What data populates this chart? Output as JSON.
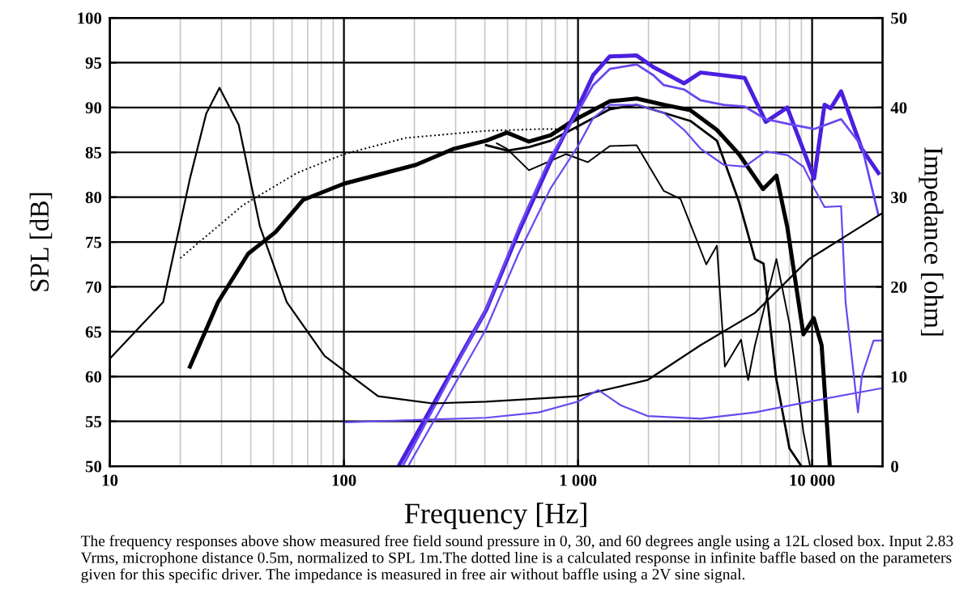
{
  "chart_data": {
    "type": "line",
    "xlabel": "Frequency [Hz]",
    "ylabel": "SPL [dB]",
    "y2label": "Impedance [ohm]",
    "log": "x",
    "xlim": [
      10,
      20000
    ],
    "xticks": [
      10,
      100,
      {
        "value": 1000,
        "label": "1 000"
      },
      {
        "value": 10000,
        "label": "10 000"
      }
    ],
    "ylim": [
      50,
      100
    ],
    "yticks": [
      50,
      55,
      60,
      65,
      70,
      75,
      80,
      85,
      90,
      95,
      100
    ],
    "y2lim": [
      0,
      50
    ],
    "y2ticks": [
      0,
      10,
      20,
      30,
      40,
      50
    ],
    "grid": true,
    "legend": false,
    "series": [
      {
        "color": "#000000",
        "line_style": "dotted",
        "x": [
          20,
          37,
          63,
          100,
          183,
          405,
          700,
          1000
        ],
        "values": [
          73.2,
          79.1,
          82.7,
          84.8,
          86.6,
          87.4,
          87.6,
          87.6
        ]
      },
      {
        "color": "#000000",
        "x": [
          22,
          29,
          39,
          51,
          67,
          100,
          203,
          295,
          405,
          497,
          617,
          764,
          935,
          1367,
          1780,
          2325,
          3020,
          3920,
          4870,
          6170,
          7040,
          7830,
          9180,
          10160,
          10980,
          11900
        ],
        "values": [
          61.1,
          68.3,
          73.7,
          76.1,
          79.7,
          81.5,
          83.6,
          85.4,
          86.3,
          87.2,
          86.2,
          86.9,
          88.4,
          90.7,
          91.0,
          90.3,
          89.7,
          87.5,
          84.8,
          80.9,
          82.4,
          76.7,
          64.7,
          66.5,
          63.5,
          50
        ]
      },
      {
        "color": "#000000",
        "x": [
          405,
          500,
          620,
          764,
          935,
          1367,
          1780,
          2325,
          3020,
          3920,
          4870,
          5700,
          6200,
          7000,
          8000,
          9000
        ],
        "values": [
          85.8,
          85.2,
          85.6,
          86.3,
          87.5,
          89.8,
          90.3,
          89.4,
          88.5,
          86.3,
          79.5,
          73.1,
          72.6,
          60,
          52,
          50
        ]
      },
      {
        "color": "#000000",
        "x": [
          450,
          497,
          617,
          890,
          1100,
          1367,
          1780,
          2325,
          2740,
          3530,
          3920,
          4240,
          4970,
          5330,
          5700,
          7040,
          8000,
          9180,
          9800
        ],
        "values": [
          86.0,
          85.4,
          83.0,
          84.8,
          83.9,
          85.7,
          85.8,
          80.7,
          79.8,
          72.5,
          74.6,
          61.1,
          64.1,
          59.6,
          63.5,
          73.1,
          65.9,
          53.8,
          50
        ]
      },
      {
        "color": "#4b1fe0",
        "x": [
          173,
          405,
          557,
          764,
          1000,
          1160,
          1367,
          1780,
          2100,
          2325,
          2840,
          3340,
          5150,
          6340,
          7830,
          10200,
          11300,
          12000,
          13300,
          16300,
          19200
        ],
        "values": [
          50.2,
          67.4,
          76.1,
          84.0,
          90.0,
          93.6,
          95.7,
          95.8,
          94.5,
          93.9,
          92.7,
          93.9,
          93.3,
          88.4,
          90.0,
          82.1,
          90.3,
          89.9,
          91.8,
          85.4,
          82.7
        ]
      },
      {
        "color": "#6a48f0",
        "x": [
          180,
          405,
          557,
          764,
          1000,
          1160,
          1367,
          1780,
          2100,
          2325,
          2840,
          3340,
          4200,
          5150,
          6340,
          7830,
          10200,
          13300,
          16300,
          19200
        ],
        "values": [
          50.2,
          67.5,
          76.5,
          84.5,
          89.5,
          92.5,
          94.3,
          94.8,
          93.6,
          92.5,
          92.0,
          90.8,
          90.3,
          90.1,
          88.7,
          88.2,
          87.6,
          88.7,
          85.7,
          78.0
        ]
      },
      {
        "color": "#6a48f0",
        "x": [
          190,
          405,
          557,
          764,
          1000,
          1160,
          1367,
          1780,
          2325,
          2840,
          3340,
          4200,
          5150,
          6340,
          7830,
          9180,
          10200,
          11300,
          13300,
          13900,
          15700,
          16300,
          18300,
          20000
        ],
        "values": [
          50.2,
          65.3,
          73.7,
          81.0,
          85.7,
          88.8,
          90.3,
          90.3,
          89.4,
          87.5,
          85.4,
          83.6,
          83.4,
          85.1,
          84.7,
          83.4,
          81.0,
          78.9,
          79.0,
          68.3,
          56.0,
          60.0,
          64.0,
          64.0
        ]
      },
      {
        "color": "#000000",
        "axis": "y2",
        "x": [
          10,
          16.9,
          22,
          25.8,
          29.4,
          35.5,
          43.8,
          57,
          82.7,
          140,
          239,
          405,
          1000,
          1980,
          3340,
          5700,
          9700,
          14800,
          19900
        ],
        "values": [
          12,
          18.3,
          32.1,
          39.3,
          42.2,
          38.1,
          26.7,
          18.3,
          12.3,
          7.8,
          7.0,
          7.2,
          7.8,
          9.6,
          13.5,
          17.1,
          23.1,
          26.1,
          28.2
        ]
      },
      {
        "color": "#6a48f0",
        "axis": "y2",
        "x": [
          101.6,
          405,
          680,
          1000,
          1220,
          1520,
          1980,
          3340,
          5700,
          9700,
          19900
        ],
        "values": [
          4.9,
          5.4,
          6.0,
          7.2,
          8.5,
          6.8,
          5.6,
          5.3,
          6.0,
          7.2,
          8.7
        ]
      }
    ],
    "annotations": [
      "The frequency responses above show measured free field sound pressure in 0, 30, and 60 degrees angle using a 12L closed box. Input 2.83 Vrms, microphone distance 0.5m, normalized to SPL 1m.The dotted line is a calculated response in infinite baffle based on the parameters given for this specific driver. The impedance is measured in free air without baffle using a 2V sine signal."
    ]
  }
}
